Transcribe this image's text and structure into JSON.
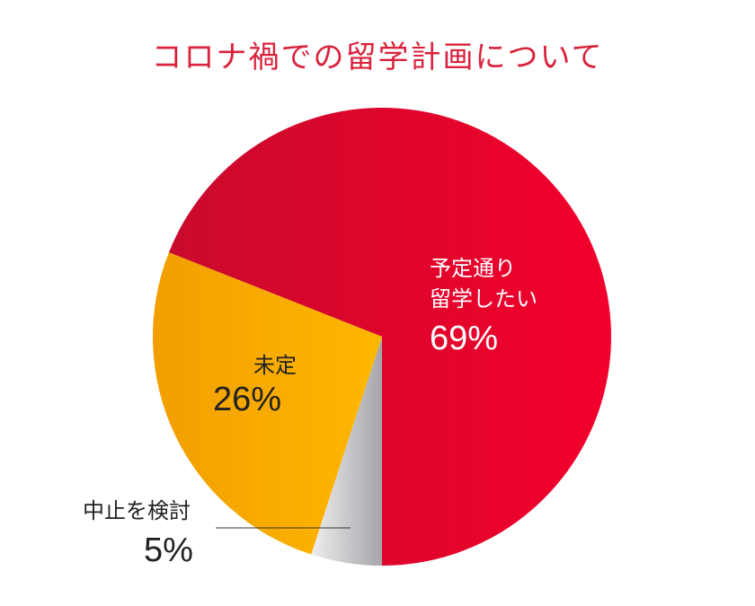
{
  "chart_data": {
    "type": "pie",
    "title": "コロナ禍での留学計画について",
    "categories": [
      "予定通り\n留学したい",
      "中止を検討",
      "未定"
    ],
    "values": [
      69,
      5,
      26
    ],
    "value_labels": [
      "69%",
      "5%",
      "26%"
    ],
    "colors": [
      "#e3002b",
      "#b9b9bd",
      "#f7ab00"
    ]
  }
}
